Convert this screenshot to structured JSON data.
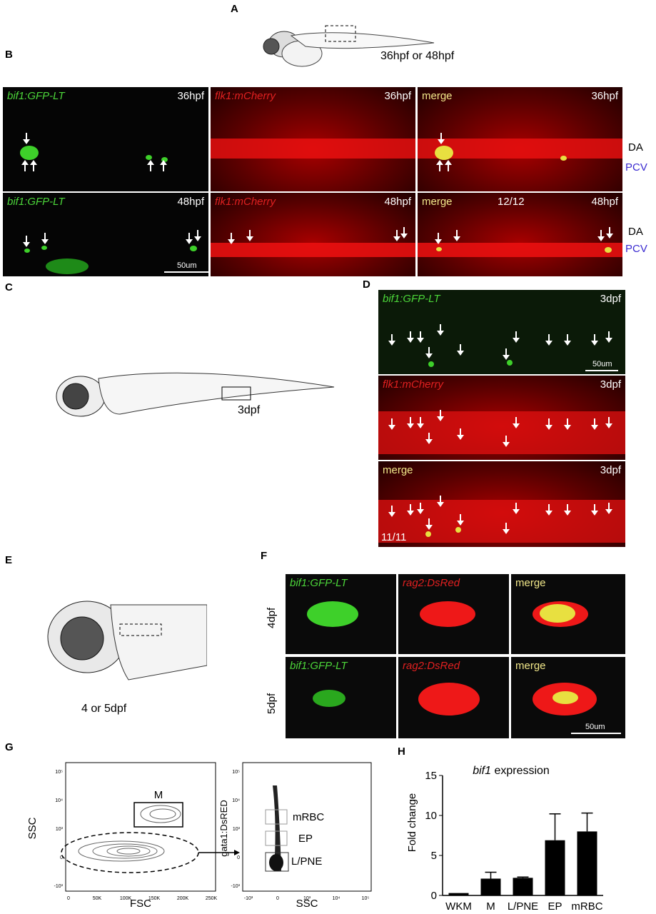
{
  "panels": {
    "A": {
      "label": "A",
      "stage": "36hpf or 48hpf"
    },
    "B": {
      "label": "B",
      "row1": {
        "green": "bif1:GFP-LT",
        "red": "flk1:mCherry",
        "merge": "merge",
        "time": "36hpf"
      },
      "row2": {
        "green": "bif1:GFP-LT",
        "red": "flk1:mCherry",
        "merge": "merge",
        "time": "48hpf",
        "count": "12/12",
        "scale": "50um"
      },
      "vessel_DA": "DA",
      "vessel_PCV": "PCV"
    },
    "C": {
      "label": "C",
      "stage": "3dpf"
    },
    "D": {
      "label": "D",
      "green": "bif1:GFP-LT",
      "red": "flk1:mCherry",
      "merge": "merge",
      "time": "3dpf",
      "scale": "50um",
      "count": "11/11"
    },
    "E": {
      "label": "E",
      "stage": "4 or 5dpf"
    },
    "F": {
      "label": "F",
      "green": "bif1:GFP-LT",
      "red": "rag2:DsRed",
      "merge": "merge",
      "row1": "4dpf",
      "row2": "5dpf",
      "scale": "50um"
    },
    "G": {
      "label": "G",
      "plot1": {
        "xlabel": "FSC",
        "ylabel": "SSC",
        "gate": "M",
        "xticks": [
          "0",
          "50K",
          "100K",
          "150K",
          "200K",
          "250K"
        ],
        "yticks": [
          "10⁵",
          "10⁴",
          "10³",
          "0",
          "-10³"
        ]
      },
      "plot2": {
        "xlabel": "SSC",
        "ylabel": "gata1:DsRED",
        "gates": [
          "mRBC",
          "EP",
          "L/PNE"
        ],
        "xticks": [
          "-10³",
          "0",
          "10³",
          "10⁴",
          "10⁵"
        ],
        "yticks": [
          "10⁵",
          "10⁴",
          "10³",
          "0",
          "-10³"
        ]
      }
    },
    "H": {
      "label": "H"
    }
  },
  "chart_data": {
    "type": "bar",
    "title_gene": "bif1",
    "title_rest": " expression",
    "categories": [
      "WKM",
      "M",
      "L/PNE",
      "EP",
      "mRBC"
    ],
    "values": [
      0.3,
      2.1,
      2.2,
      6.9,
      8.0
    ],
    "errors": [
      0,
      0.8,
      0.1,
      3.3,
      2.3
    ],
    "ylabel": "Fold change",
    "ylim": [
      0,
      15
    ],
    "yticks": [
      0,
      5,
      10,
      15
    ]
  }
}
